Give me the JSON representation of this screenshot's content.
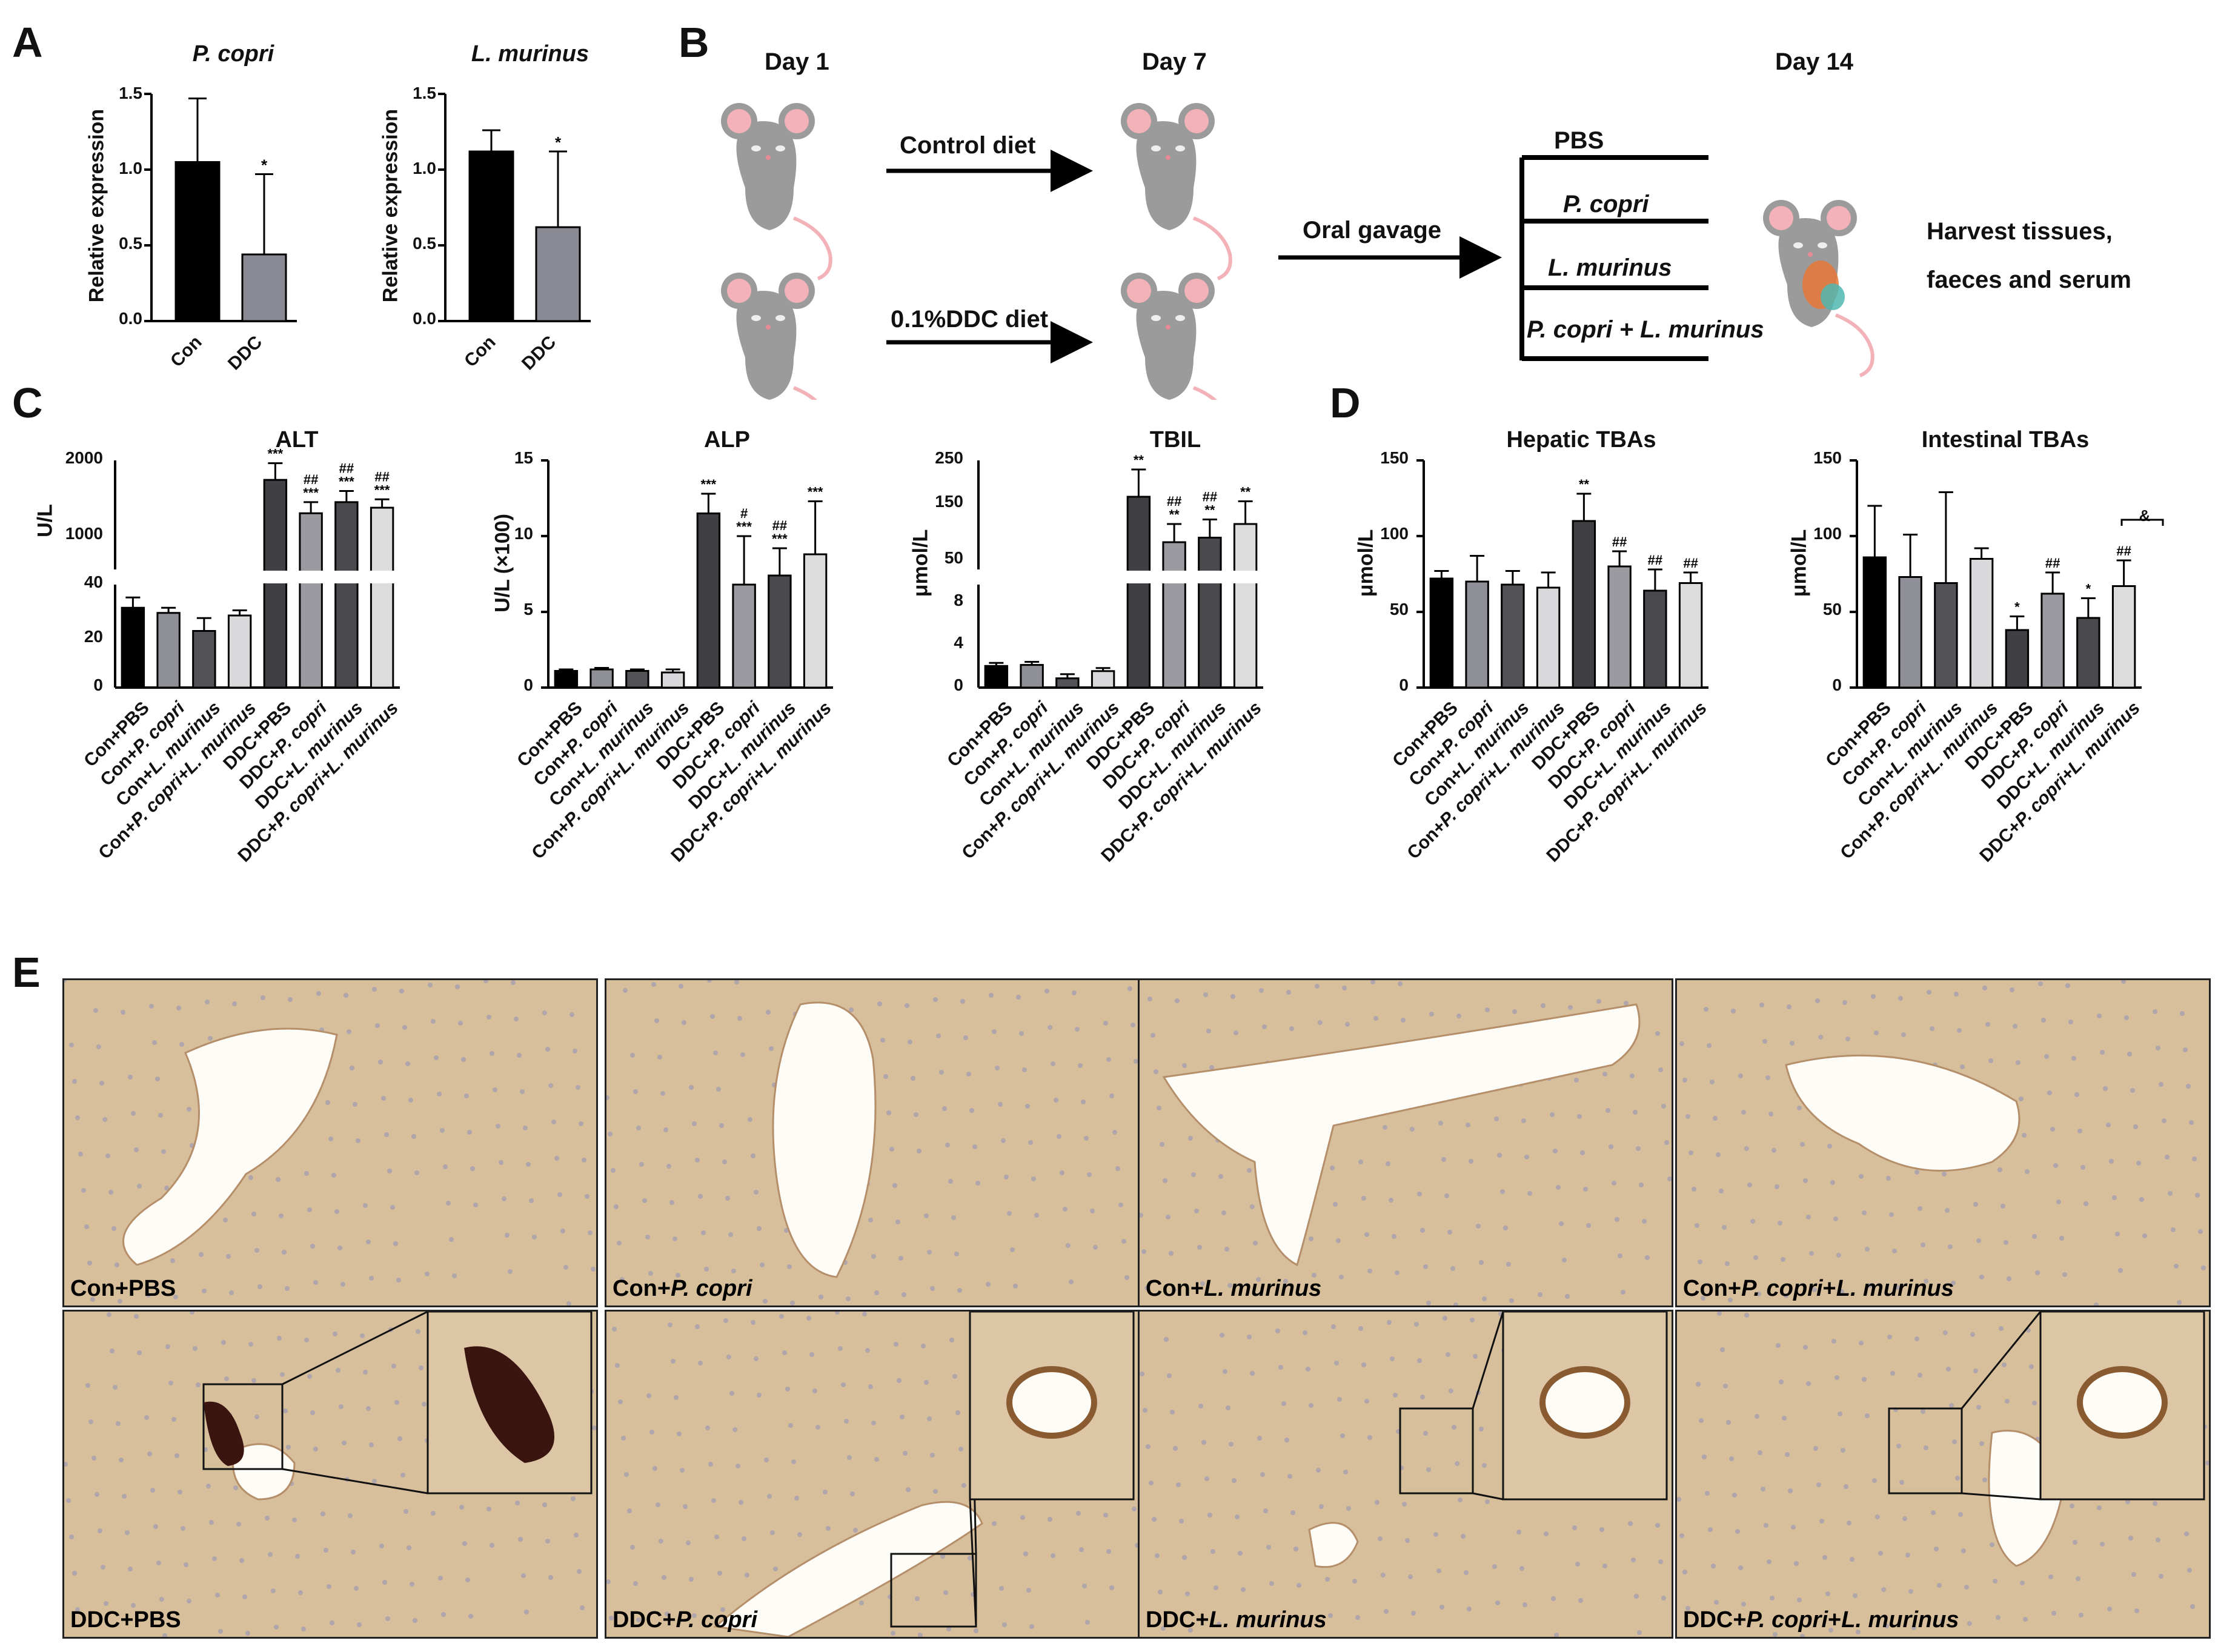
{
  "panel_labels": {
    "A": "A",
    "B": "B",
    "C": "C",
    "D": "D",
    "E": "E"
  },
  "panel_a": {
    "charts": [
      {
        "title": "P. copri",
        "ylabel": "Relative expression",
        "ticks": [
          "1.5",
          "1.0",
          "0.5",
          "0.0"
        ],
        "categories": [
          "Con",
          "DDC"
        ],
        "sig": [
          "",
          "*"
        ]
      },
      {
        "title": "L. murinus",
        "ylabel": "Relative expression",
        "ticks": [
          "1.5",
          "1.0",
          "0.5",
          "0.0"
        ],
        "categories": [
          "Con",
          "DDC"
        ],
        "sig": [
          "",
          "*"
        ]
      }
    ]
  },
  "panel_b": {
    "day1": "Day 1",
    "day7": "Day 7",
    "day14": "Day 14",
    "control_diet": "Control diet",
    "ddc_diet": "0.1%DDC diet",
    "oral_gavage": "Oral gavage",
    "groups": [
      "PBS",
      "P. copri",
      "L. murinus",
      "P. copri + L. murinus"
    ],
    "harvest_line1": "Harvest tissues,",
    "harvest_line2": "faeces and serum"
  },
  "group_labels_c": [
    "Con+PBS",
    "Con+P. copri",
    "Con+L. murinus",
    "Con+P. copri+L. murinus",
    "DDC+PBS",
    "DDC+P. copri",
    "DDC+L. murinus",
    "DDC+P. copri+L. murinus"
  ],
  "group_labels_d1": [
    "Con+PBS",
    "Con+P. copri",
    "Con+L. murinus",
    "Con+P. copri+L. murinus",
    "DDC+PBS",
    "DDC+P. copri",
    "DDC+L. murinus",
    "DDC+P. copri+L. murinus"
  ],
  "group_labels_d2": [
    "Con+PBS",
    "Con+P. copri",
    "Con+L. murinus",
    "Con+P. copri+L. murinus",
    "DDC+PBS",
    "DDC+P. copri",
    "DDC+L. murinus",
    "DDC+P. copri+L. murinus"
  ],
  "panel_c": {
    "alt": {
      "title": "ALT",
      "ylabel": "U/L",
      "ticks_top": [
        "2000",
        "1000"
      ],
      "ticks_bottom": [
        "40",
        "20",
        "0"
      ]
    },
    "alp": {
      "title": "ALP",
      "ylabel": "U/L (×100)",
      "ticks": [
        "15",
        "10",
        "5",
        "0"
      ]
    },
    "tbil": {
      "title": "TBIL",
      "ylabel": "μmol/L",
      "ticks_top": [
        "250",
        "150",
        "50"
      ],
      "ticks_bottom": [
        "8",
        "4",
        "0"
      ]
    }
  },
  "panel_d": {
    "hepatic": {
      "title": "Hepatic TBAs",
      "ylabel": "μmol/L",
      "ticks": [
        "150",
        "100",
        "50",
        "0"
      ]
    },
    "intestinal": {
      "title": "Intestinal TBAs",
      "ylabel": "μmol/L",
      "ticks": [
        "150",
        "100",
        "50",
        "0"
      ],
      "bracket": "&"
    }
  },
  "panel_e": {
    "captions": [
      {
        "pre": "Con+PBS",
        "it": "",
        "post": "",
        "mid": "",
        "it2": ""
      },
      {
        "pre": "Con+",
        "it": "P. copri",
        "post": "",
        "mid": "",
        "it2": ""
      },
      {
        "pre": "Con+",
        "it": "L. murinus",
        "post": "",
        "mid": "",
        "it2": ""
      },
      {
        "pre": "Con+",
        "it": "P. copri",
        "post": "",
        "mid": "+",
        "it2": "L. murinus"
      },
      {
        "pre": "DDC+PBS",
        "it": "",
        "post": "",
        "mid": "",
        "it2": ""
      },
      {
        "pre": "DDC+",
        "it": "P. copri",
        "post": "",
        "mid": "",
        "it2": ""
      },
      {
        "pre": "DDC+",
        "it": "L. murinus",
        "post": "",
        "mid": "",
        "it2": ""
      },
      {
        "pre": "DDC+",
        "it": "P. copri",
        "post": "",
        "mid": "+",
        "it2": "L. murinus"
      }
    ]
  },
  "chart_data": [
    {
      "type": "bar",
      "title": "P. copri",
      "ylabel": "Relative expression",
      "categories": [
        "Con",
        "DDC"
      ],
      "values": [
        1.05,
        0.44
      ],
      "errors": [
        0.42,
        0.53
      ],
      "ylim": [
        0,
        1.5
      ],
      "colors": [
        "#000000",
        "#8a8a95"
      ]
    },
    {
      "type": "bar",
      "title": "L. murinus",
      "ylabel": "Relative expression",
      "categories": [
        "Con",
        "DDC"
      ],
      "values": [
        1.12,
        0.62
      ],
      "errors": [
        0.14,
        0.5
      ],
      "ylim": [
        0,
        1.5
      ],
      "colors": [
        "#000000",
        "#8a8a95"
      ]
    },
    {
      "type": "bar",
      "title": "ALT",
      "ylabel": "U/L",
      "values": [
        31,
        29,
        22,
        28,
        1650,
        1050,
        1250,
        1150
      ],
      "errors": [
        4,
        2,
        5,
        2,
        300,
        200,
        200,
        150
      ],
      "sig": [
        "",
        "",
        "",
        "",
        "***",
        "##\n***",
        "##\n***",
        "##\n***"
      ]
    },
    {
      "type": "bar",
      "title": "ALP",
      "ylabel": "U/L (×100)",
      "ylim": [
        0,
        15
      ],
      "values": [
        1.1,
        1.2,
        1.1,
        1.0,
        11.5,
        6.8,
        7.4,
        8.8
      ],
      "errors": [
        0.1,
        0.1,
        0.1,
        0.2,
        1.3,
        3.2,
        1.8,
        3.5
      ],
      "sig": [
        "",
        "",
        "",
        "",
        "***",
        "#\n***",
        "##\n***",
        "***"
      ]
    },
    {
      "type": "bar",
      "title": "TBIL",
      "ylabel": "μmol/L",
      "values": [
        2.1,
        2.2,
        0.9,
        1.6,
        170,
        70,
        80,
        110
      ],
      "errors": [
        0.3,
        0.3,
        0.4,
        0.3,
        60,
        40,
        40,
        50
      ],
      "sig": [
        "",
        "",
        "",
        "",
        "**",
        "##\n**",
        "##\n**",
        "**"
      ]
    },
    {
      "type": "bar",
      "title": "Hepatic TBAs",
      "ylabel": "μmol/L",
      "ylim": [
        0,
        150
      ],
      "values": [
        72,
        70,
        68,
        66,
        110,
        80,
        64,
        69
      ],
      "errors": [
        5,
        17,
        9,
        10,
        18,
        10,
        14,
        7
      ],
      "sig": [
        "",
        "",
        "",
        "",
        "**",
        "##",
        "##",
        "##"
      ]
    },
    {
      "type": "bar",
      "title": "Intestinal TBAs",
      "ylabel": "μmol/L",
      "ylim": [
        0,
        150
      ],
      "values": [
        86,
        73,
        69,
        85,
        38,
        62,
        46,
        67
      ],
      "errors": [
        34,
        28,
        60,
        7,
        9,
        14,
        13,
        17
      ],
      "sig": [
        "",
        "",
        "",
        "",
        "*",
        "##",
        "*",
        "##"
      ]
    }
  ]
}
